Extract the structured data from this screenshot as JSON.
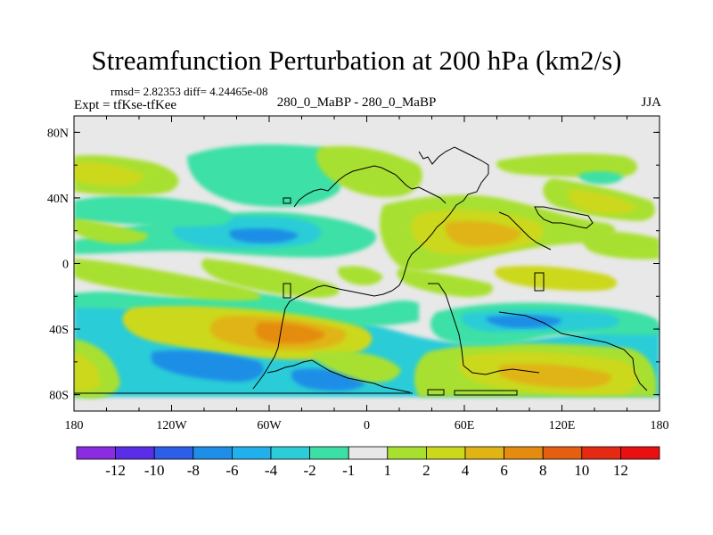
{
  "chart_data": {
    "type": "heatmap",
    "title": "Streamfunction Perturbation at 200 hPa (km2/s)",
    "stats_label": "rmsd= 2.82353 diff= 4.24465e-08",
    "left_label": "Expt = tfKse-tfKee",
    "center_label": "280_0_MaBP - 280_0_MaBP",
    "right_label": "JJA",
    "x_ticks": [
      "180",
      "120W",
      "60W",
      "0",
      "60E",
      "120E",
      "180"
    ],
    "y_ticks": [
      "80N",
      "40N",
      "0",
      "40S",
      "80S"
    ],
    "xlim": [
      -180,
      180
    ],
    "ylim": [
      -90,
      90
    ],
    "colorbar": {
      "labels": [
        "-12",
        "-10",
        "-8",
        "-6",
        "-4",
        "-2",
        "-1",
        "1",
        "2",
        "4",
        "6",
        "8",
        "10",
        "12"
      ],
      "colors": [
        "#8c2ce0",
        "#5a2ee6",
        "#2c5ee8",
        "#1e8ee6",
        "#22b0ec",
        "#2cccd8",
        "#3ce0a6",
        "#e8e8e8",
        "#a8e030",
        "#ccd81c",
        "#e0b414",
        "#e48c10",
        "#e46010",
        "#e42a12",
        "#e81010"
      ]
    },
    "field_colors": {
      "background": "#e8e8e8",
      "neg_light": "#3ce0a6",
      "neg_mid": "#2cccd8",
      "neg_strong": "#1e8ee6",
      "pos_light": "#a8e030",
      "pos_mid": "#ccd81c",
      "pos_strong": "#e0b414",
      "pos_hot": "#e48c10"
    },
    "grid": false
  }
}
